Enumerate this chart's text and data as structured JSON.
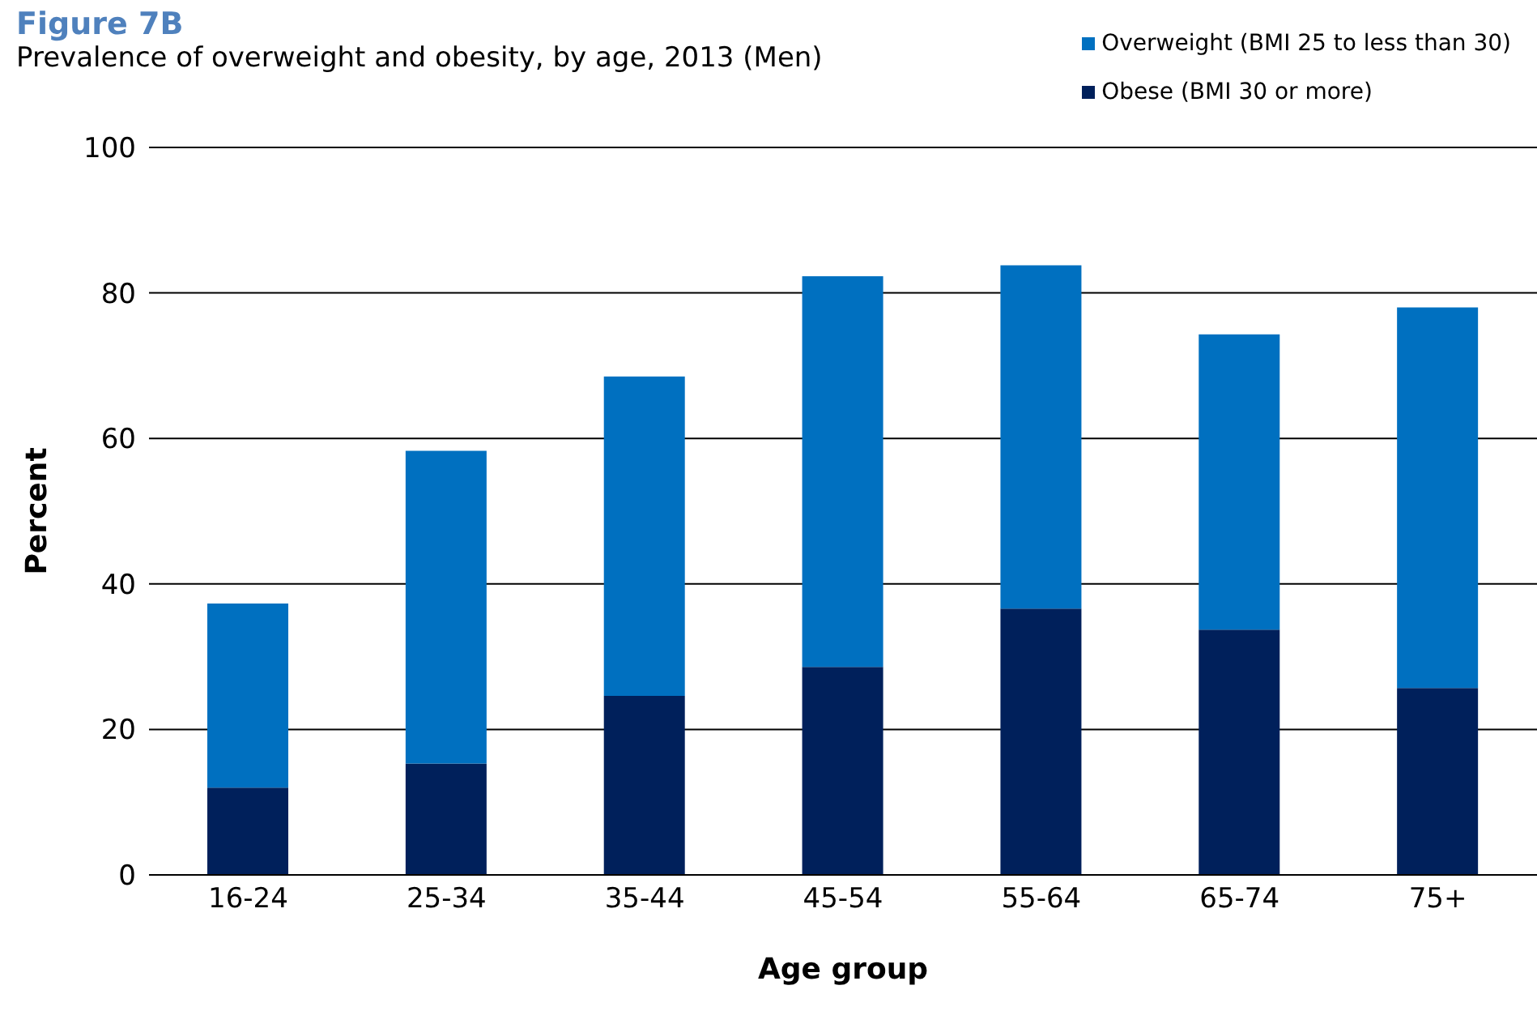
{
  "chart_data": {
    "type": "bar",
    "title": "Figure 7B",
    "subtitle": "Prevalence of overweight and obesity, by age, 2013 (Men)",
    "xlabel": "Age group",
    "ylabel": "Percent",
    "categories": [
      "16-24",
      "25-34",
      "35-44",
      "45-54",
      "55-64",
      "65-74",
      "75+"
    ],
    "series": [
      {
        "name": "Obese (BMI 30 or more)",
        "color": "#00205b",
        "values": [
          12.0,
          15.3,
          24.6,
          28.6,
          36.6,
          33.7,
          25.7
        ]
      },
      {
        "name": "Overweight (BMI 25 to less than 30)",
        "color": "#0070c0",
        "values": [
          25.3,
          43.0,
          43.9,
          53.7,
          47.2,
          40.6,
          52.3
        ]
      }
    ],
    "stacked": true,
    "ylim": [
      0,
      100
    ],
    "yticks": [
      0,
      20,
      40,
      60,
      80,
      100
    ],
    "grid": "y",
    "legend": "top right"
  }
}
